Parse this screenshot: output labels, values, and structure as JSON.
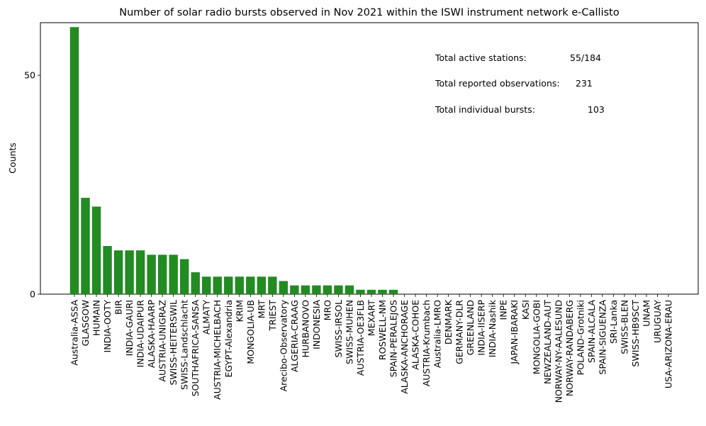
{
  "chart_data": {
    "type": "bar",
    "title": "Number of solar radio bursts observed in Nov 2021 within the ISWI instrument network e-Callisto",
    "xlabel": "",
    "ylabel": "Counts",
    "ylim": [
      0,
      62
    ],
    "yticks": [
      0,
      50
    ],
    "grid": false,
    "color": "#228b22",
    "categories": [
      "Australia-ASSA",
      "GLASGOW",
      "HUMAIN",
      "INDIA-OOTY",
      "BIR",
      "INDIA-GAURI",
      "INDIA-UDAIPUR",
      "ALASKA-HAARP",
      "AUSTRIA-UNIGRAZ",
      "SWISS-HEITERSWIL",
      "SWISS-Landschlacht",
      "SOUTHAFRICA-SANSA",
      "ALMATY",
      "AUSTRIA-MICHELBACH",
      "EGYPT-Alexandria",
      "KRIM",
      "MONGOLIA-UB",
      "MRT",
      "TRIEST",
      "Arecibo-Observatory",
      "ALGERIA-CRAAG",
      "HURBANOVO",
      "INDONESIA",
      "MRO",
      "SWISS-IRSOL",
      "SWISS-MUHEN",
      "AUSTRIA-OE3FLB",
      "MEXART",
      "ROSWELL-NM",
      "SPAIN-PERALEJOS",
      "ALASKA-ANCHORAGE",
      "ALASKA-COHOE",
      "AUSTRIA-Krumbach",
      "Australia-LMRO",
      "DENMARK",
      "GERMANY-DLR",
      "GREENLAND",
      "INDIA-IISERP",
      "INDIA-Nashik",
      "INPE",
      "JAPAN-IBARAKI",
      "KASI",
      "MONGOLIA-GOBI",
      "NEWZEALAND-AUT",
      "NORWAY-NY-AALESUND",
      "NORWAY-RANDABERG",
      "POLAND-Grotniki",
      "SPAIN-ALCALA",
      "SPAIN-SIGUENZA",
      "SRI-Lanka",
      "SWISS-BLEN",
      "SWISS-HB9SCT",
      "UNAM",
      "URUGUAY",
      "USA-ARIZONA-ERAU"
    ],
    "values": [
      61,
      22,
      20,
      11,
      10,
      10,
      10,
      9,
      9,
      9,
      8,
      5,
      4,
      4,
      4,
      4,
      4,
      4,
      4,
      3,
      2,
      2,
      2,
      2,
      2,
      2,
      1,
      1,
      1,
      1,
      0,
      0,
      0,
      0,
      0,
      0,
      0,
      0,
      0,
      0,
      0,
      0,
      0,
      0,
      0,
      0,
      0,
      0,
      0,
      0,
      0,
      0,
      0,
      0,
      0
    ],
    "annotations": [
      {
        "label": "Total active stations:",
        "value": "55/184"
      },
      {
        "label": "Total reported observations:",
        "value": "231"
      },
      {
        "label": "Total individual bursts:",
        "value": "103"
      }
    ]
  }
}
